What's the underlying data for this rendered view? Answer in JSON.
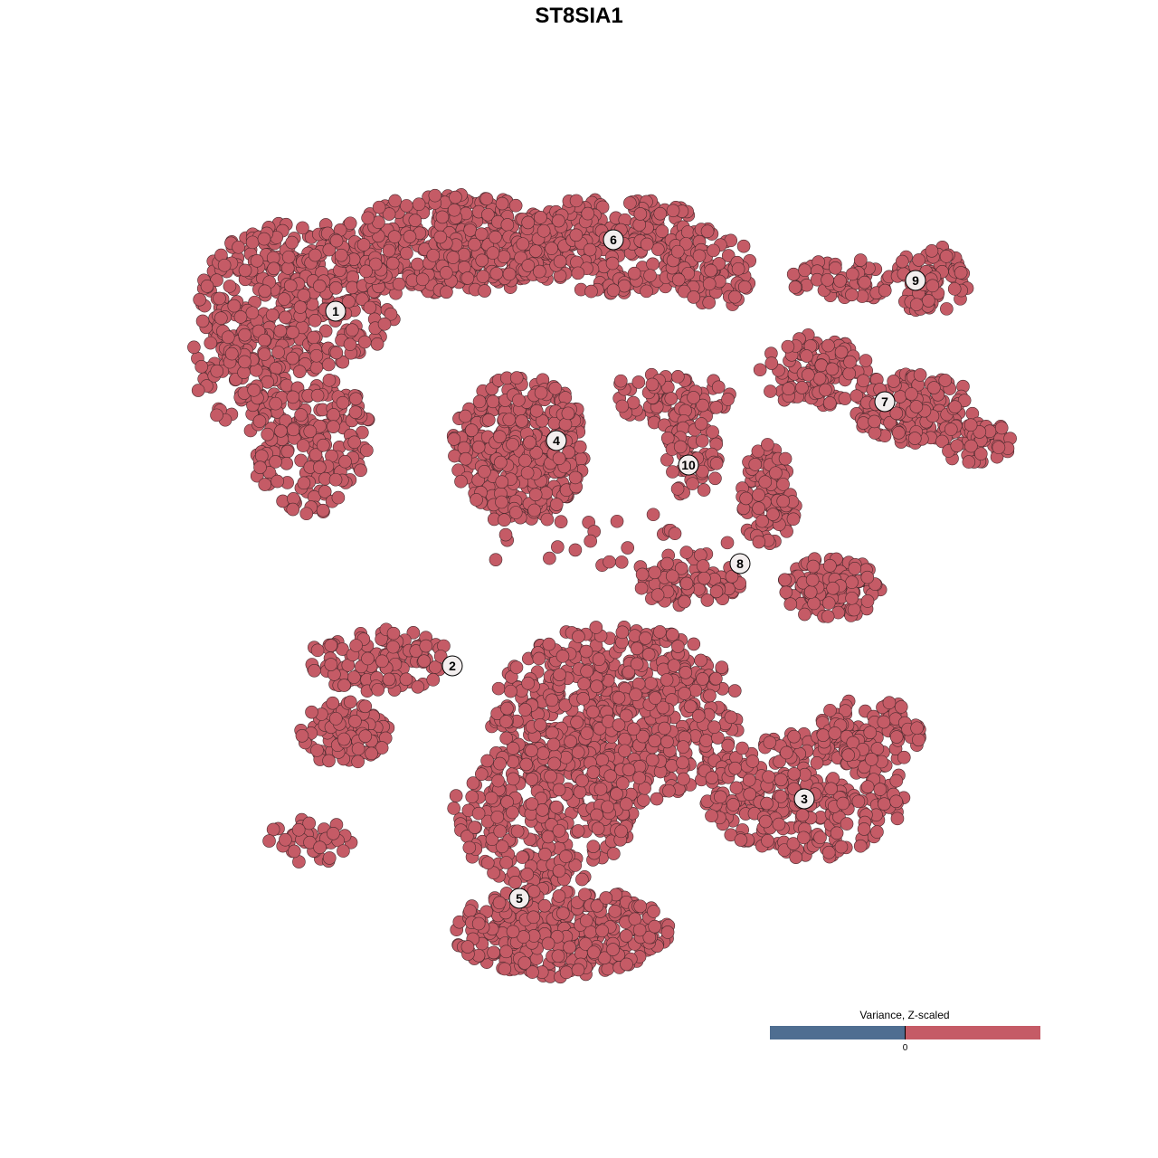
{
  "chart_data": {
    "type": "scatter",
    "title": "ST8SIA1",
    "xlabel": "",
    "ylabel": "",
    "grid": false,
    "axes_visible": false,
    "point_color": "#c55b66",
    "point_stroke": "#4a2a2e",
    "clusters": [
      {
        "label": "1",
        "x": -26.9,
        "y": 29.6
      },
      {
        "label": "2",
        "x": -14.0,
        "y": -9.6
      },
      {
        "label": "3",
        "x": 24.9,
        "y": -24.3
      },
      {
        "label": "4",
        "x": -2.5,
        "y": 15.3
      },
      {
        "label": "5",
        "x": -6.6,
        "y": -35.3
      },
      {
        "label": "6",
        "x": 3.8,
        "y": 37.5
      },
      {
        "label": "7",
        "x": 33.8,
        "y": 19.6
      },
      {
        "label": "8",
        "x": 17.8,
        "y": 1.7
      },
      {
        "label": "9",
        "x": 37.2,
        "y": 33.0
      },
      {
        "label": "10",
        "x": 12.1,
        "y": 12.6
      }
    ],
    "legend": {
      "title": "Variance, Z-scaled",
      "tick_label": "0",
      "low_color": "#4f6e91",
      "high_color": "#c55b66",
      "placement": "bottom-right"
    }
  }
}
